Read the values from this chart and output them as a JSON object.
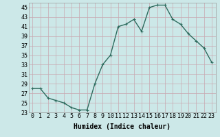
{
  "x": [
    0,
    1,
    2,
    3,
    4,
    5,
    6,
    7,
    8,
    9,
    10,
    11,
    12,
    13,
    14,
    15,
    16,
    17,
    18,
    19,
    20,
    21,
    22,
    23
  ],
  "y": [
    28,
    28,
    26,
    25.5,
    25,
    24,
    23.5,
    23.5,
    29,
    33,
    35,
    41,
    41.5,
    42.5,
    40,
    45,
    45.5,
    45.5,
    42.5,
    41.5,
    39.5,
    38,
    36.5,
    33.5
  ],
  "line_color": "#2e6b5e",
  "marker": "+",
  "marker_size": 3,
  "bg_color": "#cce8e8",
  "grid_color": "#c8a8b0",
  "xlabel": "Humidex (Indice chaleur)",
  "ylim": [
    23,
    46
  ],
  "xlim": [
    -0.5,
    23.5
  ],
  "yticks": [
    23,
    25,
    27,
    29,
    31,
    33,
    35,
    37,
    39,
    41,
    43,
    45
  ],
  "xticks": [
    0,
    1,
    2,
    3,
    4,
    5,
    6,
    7,
    8,
    9,
    10,
    11,
    12,
    13,
    14,
    15,
    16,
    17,
    18,
    19,
    20,
    21,
    22,
    23
  ],
  "xtick_labels": [
    "0",
    "1",
    "2",
    "3",
    "4",
    "5",
    "6",
    "7",
    "8",
    "9",
    "10",
    "11",
    "12",
    "13",
    "14",
    "15",
    "16",
    "17",
    "18",
    "19",
    "20",
    "21",
    "22",
    "23"
  ],
  "xlabel_fontsize": 7,
  "tick_fontsize": 6,
  "line_width": 1.0
}
